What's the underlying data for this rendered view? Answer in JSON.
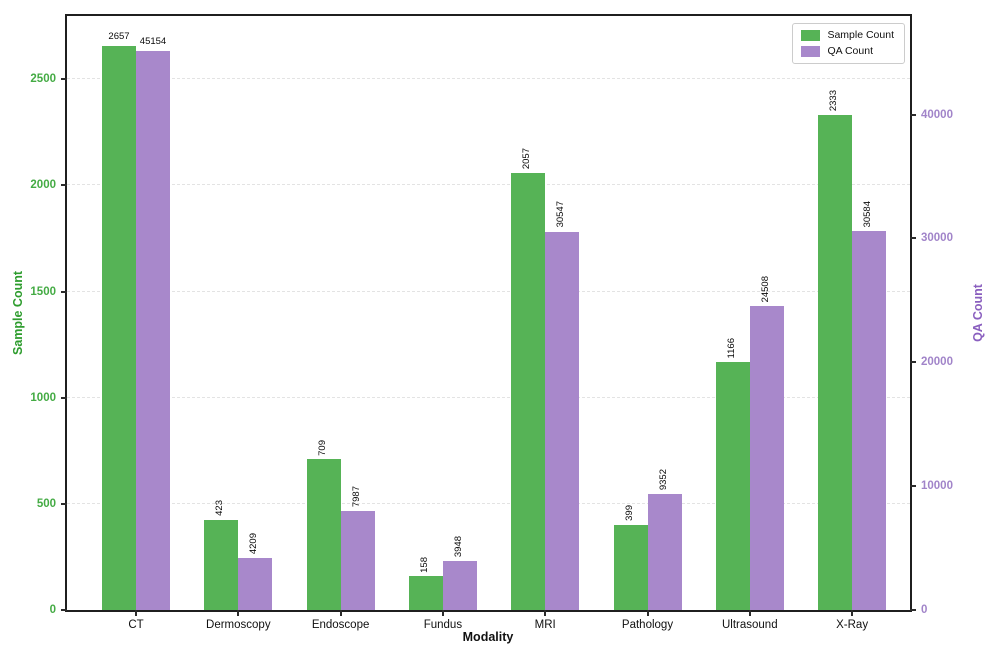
{
  "chart_data": {
    "type": "bar",
    "title": "",
    "xlabel": "Modality",
    "categories": [
      "CT",
      "Dermoscopy",
      "Endoscope",
      "Fundus",
      "MRI",
      "Pathology",
      "Ultrasound",
      "X-Ray"
    ],
    "series": [
      {
        "name": "Sample Count",
        "axis": "left",
        "color": "#56b356",
        "values": [
          2657,
          423,
          709,
          158,
          2057,
          399,
          1166,
          2333
        ]
      },
      {
        "name": "QA Count",
        "axis": "right",
        "color": "#a888cb",
        "values": [
          45154,
          4209,
          7987,
          3948,
          30547,
          9352,
          24508,
          30584
        ]
      }
    ],
    "left_axis": {
      "label": "Sample Count",
      "color": "#2d9c2d",
      "tick_color": "#44ab44",
      "ticks": [
        0,
        500,
        1000,
        1500,
        2000,
        2500
      ],
      "max": 2798
    },
    "right_axis": {
      "label": "QA Count",
      "color": "#8a5fbf",
      "tick_color": "#a184c9",
      "ticks": [
        0,
        10000,
        20000,
        30000,
        40000
      ],
      "max": 47955
    },
    "grid": {
      "horizontal": true,
      "style": "dashed"
    },
    "legend": {
      "position": "upper right",
      "entries": [
        "Sample Count",
        "QA Count"
      ]
    },
    "value_label_orientation": [
      "horizontal",
      "vertical",
      "vertical",
      "vertical",
      "vertical",
      "vertical",
      "vertical",
      "vertical"
    ]
  }
}
